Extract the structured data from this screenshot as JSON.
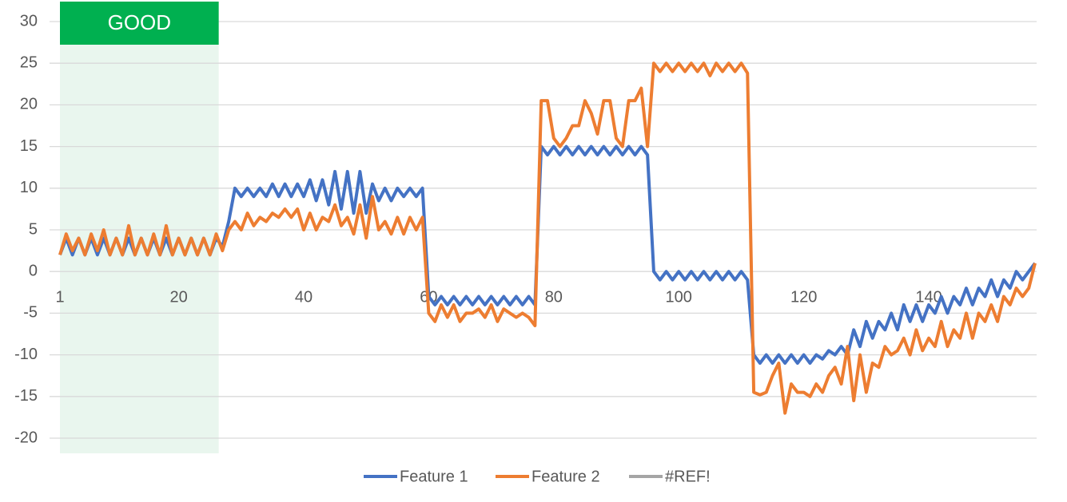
{
  "chart_data": {
    "type": "line",
    "annotation": {
      "text": "GOOD",
      "color": "#00b050",
      "band_color": "#e9f6ee",
      "xrange": [
        1,
        26.4
      ]
    },
    "x": [
      1,
      2,
      3,
      4,
      5,
      6,
      7,
      8,
      9,
      10,
      11,
      12,
      13,
      14,
      15,
      16,
      17,
      18,
      19,
      20,
      21,
      22,
      23,
      24,
      25,
      26,
      27,
      28,
      29,
      30,
      31,
      32,
      33,
      34,
      35,
      36,
      37,
      38,
      39,
      40,
      41,
      42,
      43,
      44,
      45,
      46,
      47,
      48,
      49,
      50,
      51,
      52,
      53,
      54,
      55,
      56,
      57,
      58,
      59,
      60,
      61,
      62,
      63,
      64,
      65,
      66,
      67,
      68,
      69,
      70,
      71,
      72,
      73,
      74,
      75,
      76,
      77,
      78,
      79,
      80,
      81,
      82,
      83,
      84,
      85,
      86,
      87,
      88,
      89,
      90,
      91,
      92,
      93,
      94,
      95,
      96,
      97,
      98,
      99,
      100,
      101,
      102,
      103,
      104,
      105,
      106,
      107,
      108,
      109,
      110,
      111,
      112,
      113,
      114,
      115,
      116,
      117,
      118,
      119,
      120,
      121,
      122,
      123,
      124,
      125,
      126,
      127,
      128,
      129,
      130,
      131,
      132,
      133,
      134,
      135,
      136,
      137,
      138,
      139,
      140,
      141,
      142,
      143,
      144,
      145,
      146,
      147,
      148,
      149,
      150,
      151,
      152,
      153,
      154,
      155,
      156,
      157
    ],
    "series": [
      {
        "name": "Feature 1",
        "color": "#4472c4",
        "values": [
          2,
          4,
          2,
          4,
          2,
          4,
          2,
          4,
          2,
          4,
          2,
          4,
          2,
          4,
          2,
          4,
          2,
          4,
          2,
          4,
          2,
          4,
          2,
          4,
          2,
          4,
          3,
          6,
          10,
          9,
          10,
          9,
          10,
          9,
          10.5,
          9,
          10.5,
          9,
          10.5,
          9,
          11,
          8.5,
          11,
          8,
          12,
          7.5,
          12,
          7,
          12,
          7,
          10.5,
          8.5,
          10,
          8.5,
          10,
          9,
          10,
          9,
          10,
          -3,
          -4,
          -3,
          -4,
          -3,
          -4,
          -3,
          -4,
          -3,
          -4,
          -3,
          -4,
          -3,
          -4,
          -3,
          -4,
          -3,
          -4,
          15,
          14,
          15,
          14,
          15,
          14,
          15,
          14,
          15,
          14,
          15,
          14,
          15,
          14,
          15,
          14,
          15,
          14,
          0,
          -1,
          0,
          -1,
          0,
          -1,
          0,
          -1,
          0,
          -1,
          0,
          -1,
          0,
          -1,
          0,
          -1,
          -10,
          -11,
          -10,
          -11,
          -10,
          -11,
          -10,
          -11,
          -10,
          -11,
          -10,
          -10.5,
          -9.5,
          -10,
          -9,
          -10,
          -7,
          -9,
          -6,
          -8,
          -6,
          -7,
          -5,
          -7,
          -4,
          -6,
          -4,
          -6,
          -4,
          -5,
          -3,
          -5,
          -3,
          -4,
          -2,
          -4,
          -2,
          -3,
          -1,
          -3,
          -1,
          -2,
          0,
          -1,
          0,
          1
        ]
      },
      {
        "name": "Feature 2",
        "color": "#ed7d31",
        "values": [
          2,
          4.5,
          2.5,
          4,
          2,
          4.5,
          2.5,
          5,
          2,
          4,
          2,
          5.5,
          2,
          4,
          2,
          4.5,
          2,
          5.5,
          2,
          4,
          2,
          4,
          2,
          4,
          2,
          4.5,
          2.5,
          5,
          6,
          5,
          7,
          5.5,
          6.5,
          6,
          7,
          6.5,
          7.5,
          6.5,
          7.5,
          5,
          7,
          5,
          6.5,
          6,
          8,
          5.5,
          6.5,
          4.5,
          8,
          4,
          9,
          5,
          6,
          4.5,
          6.5,
          4.5,
          6.5,
          5,
          6.5,
          -5,
          -6,
          -4,
          -5.5,
          -4,
          -6,
          -5,
          -5,
          -4.5,
          -5.5,
          -4,
          -6,
          -4.5,
          -5,
          -5.5,
          -5,
          -5.5,
          -6.5,
          20.5,
          20.5,
          16,
          15,
          16,
          17.5,
          17.5,
          20.5,
          19,
          16.5,
          20.5,
          20.5,
          16,
          15,
          20.5,
          20.5,
          22,
          15,
          25,
          24,
          25,
          24,
          25,
          24,
          25,
          24,
          25,
          23.5,
          25,
          24,
          25,
          24,
          25,
          23.8,
          -14.5,
          -14.8,
          -14.5,
          -12.5,
          -11,
          -17,
          -13.5,
          -14.5,
          -14.5,
          -15,
          -13.5,
          -14.5,
          -12.5,
          -11.5,
          -13.5,
          -9,
          -15.5,
          -10,
          -14.5,
          -11,
          -11.5,
          -9,
          -10,
          -9.5,
          -8,
          -10,
          -7,
          -9.5,
          -8,
          -9,
          -6,
          -9,
          -7,
          -8,
          -5,
          -8,
          -5,
          -6,
          -4,
          -6,
          -3,
          -4,
          -2,
          -3,
          -2,
          1
        ]
      },
      {
        "name": "#REF!",
        "color": "#a5a5a5",
        "values": [
          null,
          null,
          null,
          null,
          null,
          null,
          null,
          null,
          null,
          null,
          null,
          null,
          null,
          null,
          null,
          null,
          null,
          null,
          null,
          null,
          null,
          null,
          null,
          null,
          null,
          null,
          null,
          null,
          null,
          null,
          null,
          null,
          null,
          null,
          null,
          null,
          null,
          null,
          null,
          null,
          null,
          null,
          null,
          null,
          null,
          null,
          null,
          null,
          null,
          null,
          null,
          null,
          null,
          null,
          null,
          null,
          null,
          null,
          null,
          null,
          null,
          null,
          null,
          null,
          null,
          null,
          null,
          null,
          null,
          null,
          null,
          null,
          null,
          null,
          null,
          null,
          null,
          null,
          null,
          null,
          null,
          null,
          null,
          null,
          null,
          null,
          null,
          null,
          null,
          null,
          null,
          null,
          null,
          null,
          null,
          null,
          null,
          null,
          null,
          null,
          null,
          null,
          null,
          null,
          null,
          null,
          null,
          null,
          null,
          null,
          null,
          null,
          null,
          null,
          null,
          null,
          null,
          null,
          null,
          null,
          null,
          null,
          null,
          null,
          null,
          null,
          null,
          null,
          null,
          null,
          null,
          null,
          null,
          null,
          null,
          null,
          null,
          null,
          null,
          null,
          null,
          null,
          null,
          null,
          null,
          null,
          null,
          null,
          null,
          null,
          null,
          null,
          null,
          null,
          null,
          null,
          null
        ]
      }
    ],
    "xlim": [
      1,
      157
    ],
    "xticks": [
      1,
      20,
      40,
      60,
      80,
      100,
      120,
      140
    ],
    "ylim": [
      -20,
      30
    ],
    "yticks": [
      -20,
      -15,
      -10,
      -5,
      0,
      5,
      10,
      15,
      20,
      25,
      30
    ],
    "grid": true,
    "legend": "bottom"
  }
}
